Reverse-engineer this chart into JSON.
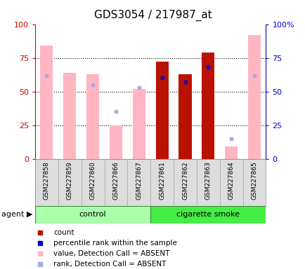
{
  "title": "GDS3054 / 217987_at",
  "samples": [
    "GSM227858",
    "GSM227859",
    "GSM227860",
    "GSM227866",
    "GSM227867",
    "GSM227861",
    "GSM227862",
    "GSM227863",
    "GSM227864",
    "GSM227865"
  ],
  "value_absent": [
    84,
    64,
    63,
    25,
    52,
    null,
    null,
    null,
    9,
    92
  ],
  "rank_absent": [
    62,
    null,
    55,
    35,
    53,
    null,
    null,
    null,
    15,
    62
  ],
  "count_red": [
    null,
    null,
    null,
    null,
    null,
    72,
    63,
    79,
    null,
    null
  ],
  "rank_present": [
    null,
    null,
    null,
    null,
    null,
    60,
    57,
    68,
    null,
    null
  ],
  "ylim": [
    0,
    100
  ],
  "left_axis_color": "#CC0000",
  "right_axis_color": "#0000CC",
  "bar_color_absent": "#FFB6C1",
  "bar_color_present": "#BB1100",
  "dot_color_rank_absent": "#AAAADD",
  "dot_color_rank_present": "#0000CC",
  "plot_bg": "#FFFFFF",
  "title_fontsize": 11,
  "control_color": "#AAFFAA",
  "smoke_color": "#44EE44"
}
